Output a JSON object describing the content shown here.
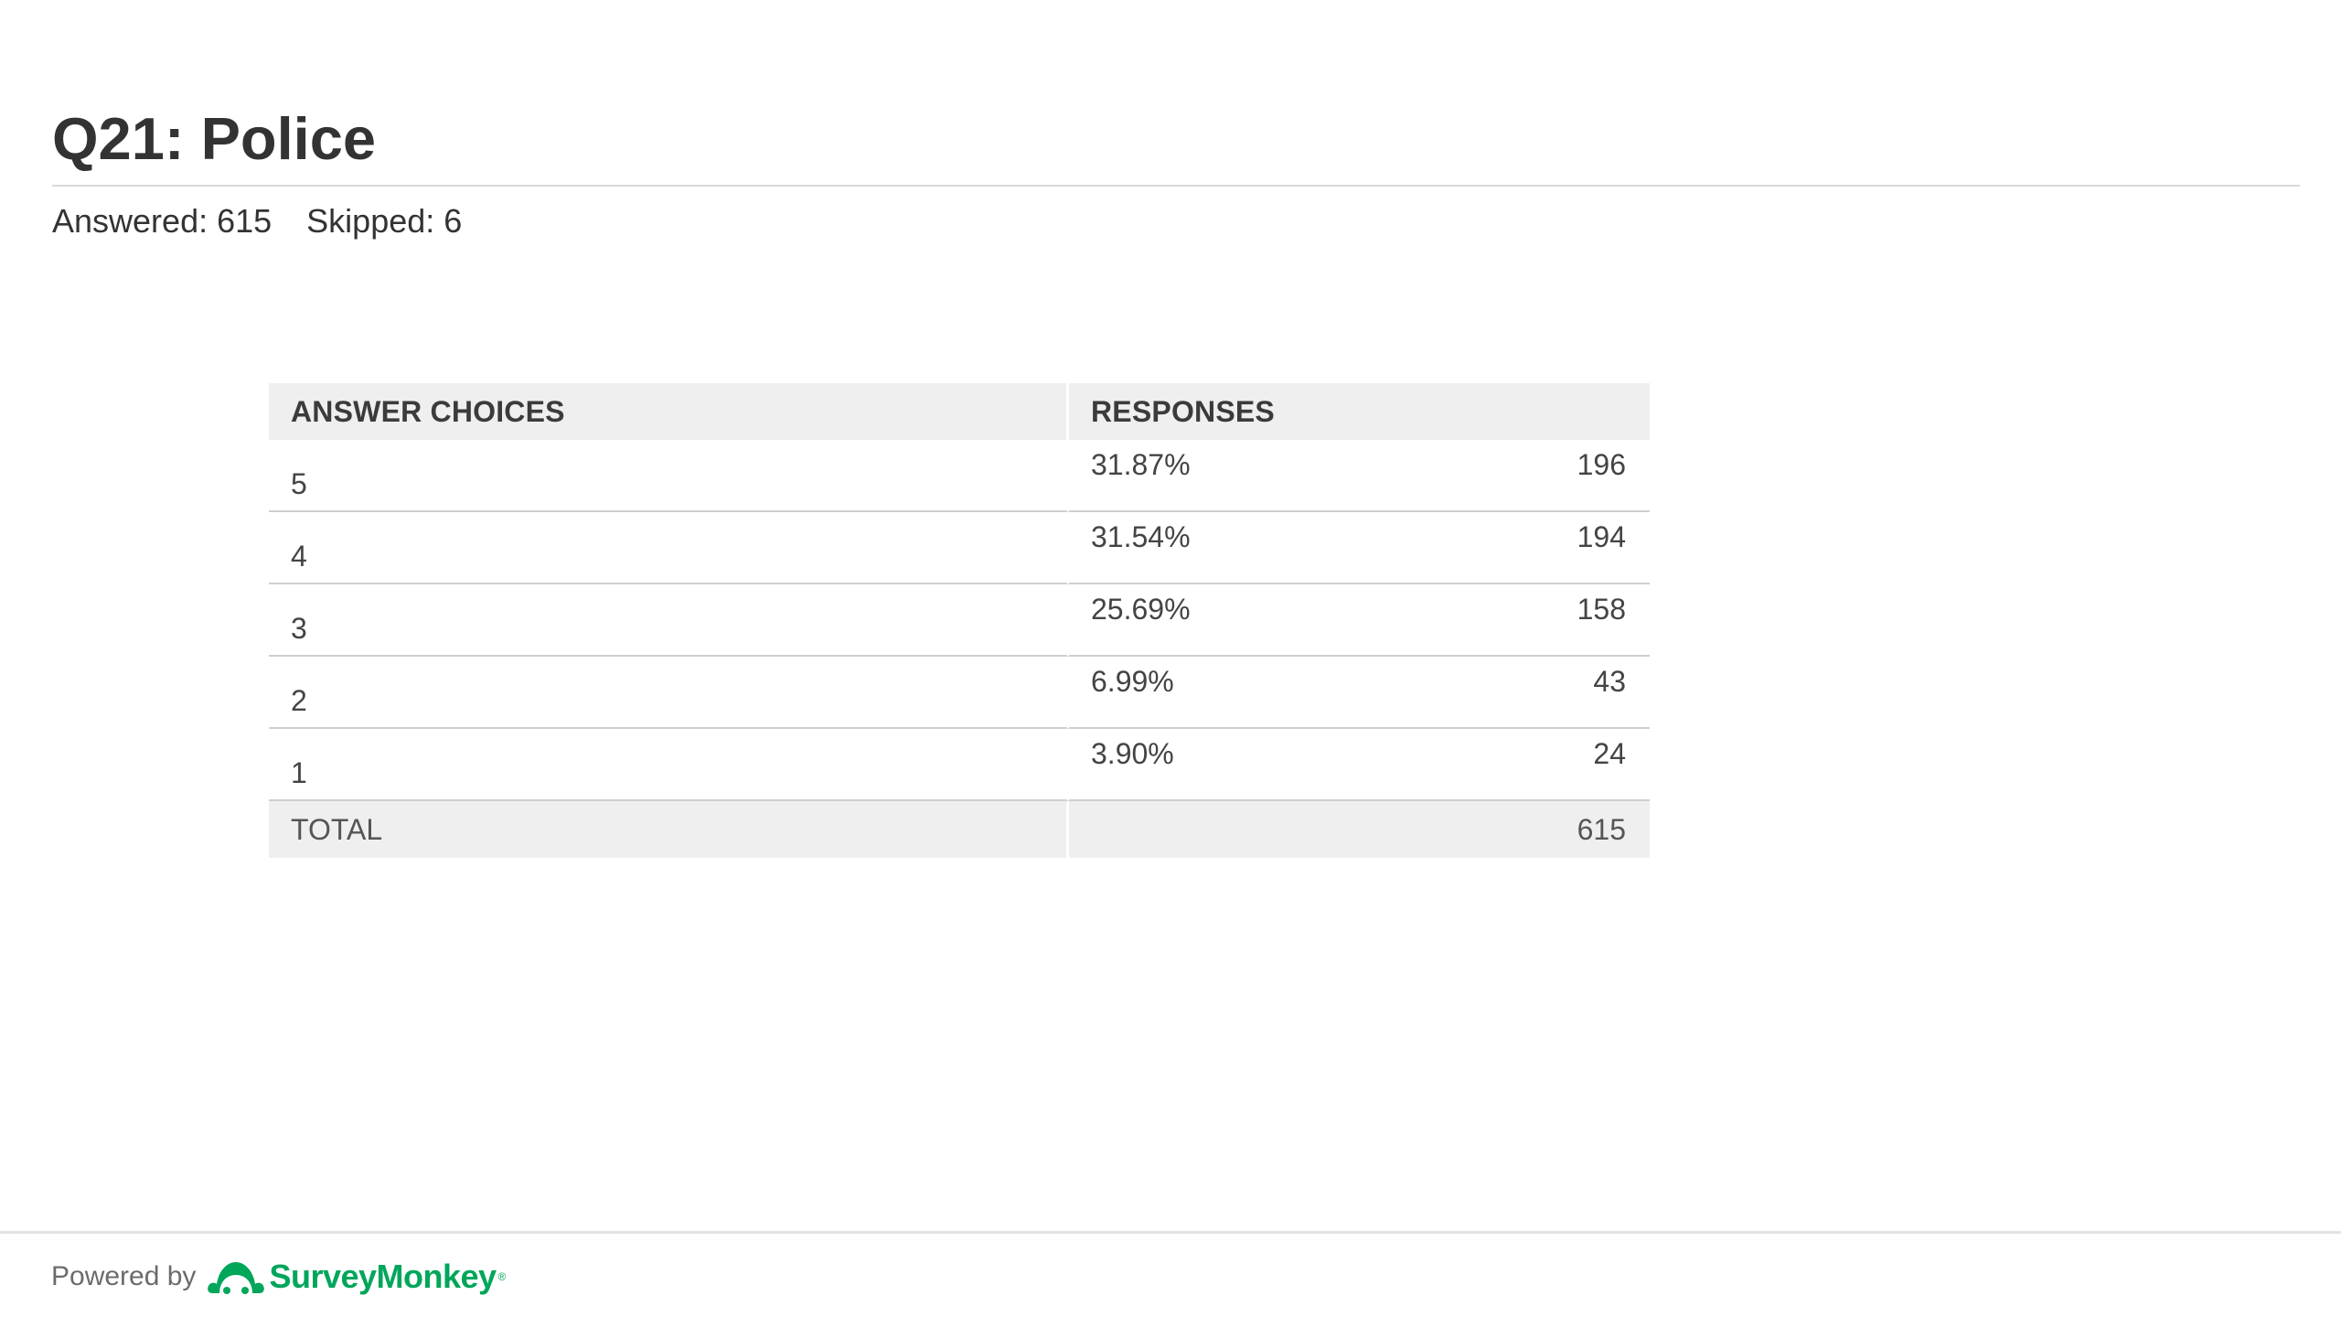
{
  "question": {
    "title": "Q21: Police",
    "answered": "Answered: 615",
    "skipped": "Skipped: 6"
  },
  "table": {
    "headers": [
      "ANSWER CHOICES",
      "RESPONSES"
    ],
    "rows": [
      {
        "choice": "5",
        "percent": "31.87%",
        "count": "196"
      },
      {
        "choice": "4",
        "percent": "31.54%",
        "count": "194"
      },
      {
        "choice": "3",
        "percent": "25.69%",
        "count": "158"
      },
      {
        "choice": "2",
        "percent": "6.99%",
        "count": "43"
      },
      {
        "choice": "1",
        "percent": "3.90%",
        "count": "24"
      }
    ],
    "total_label": "TOTAL",
    "total_count": "615"
  },
  "footer": {
    "powered_by": "Powered by",
    "brand": "SurveyMonkey",
    "trademark": "®",
    "logo_icon": "surveymonkey-logo-icon",
    "brand_color": "#00a65a"
  }
}
